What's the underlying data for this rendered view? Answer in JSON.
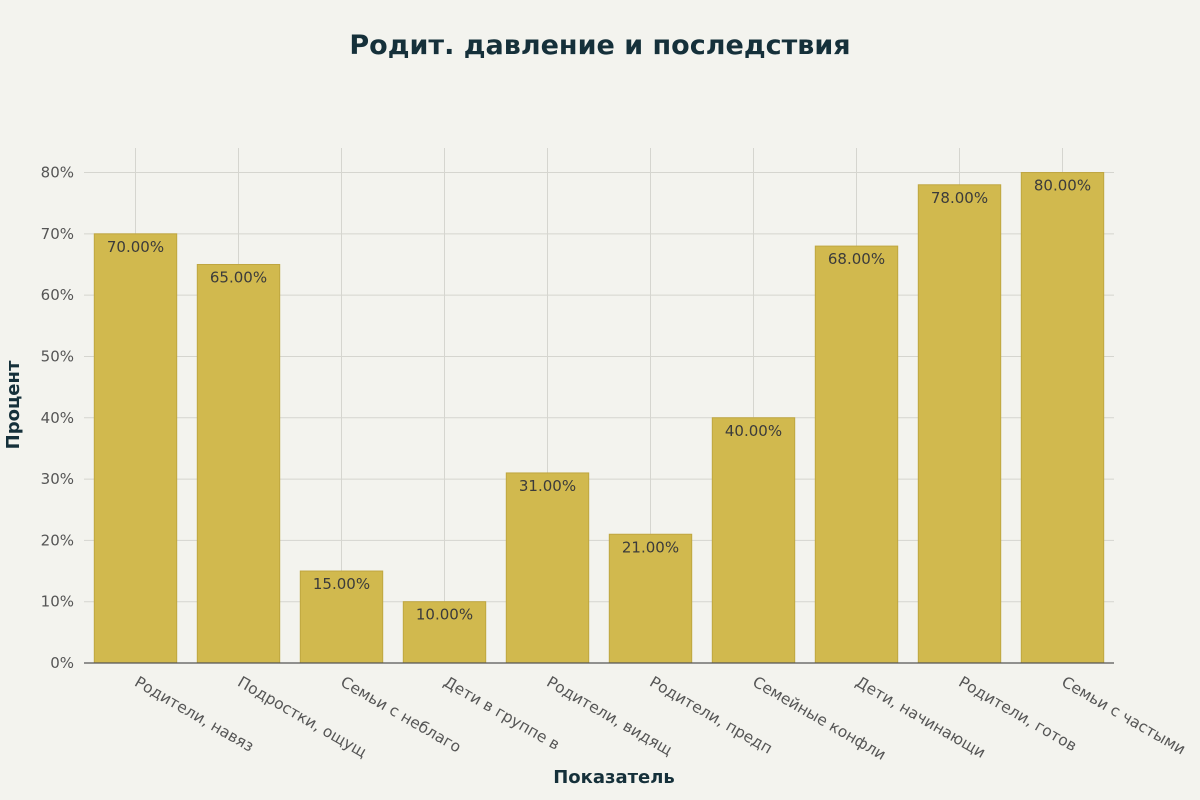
{
  "chart_data": {
    "type": "bar",
    "title": "Родит. давление и последствия",
    "xlabel": "Показатель",
    "ylabel": "Процент",
    "categories": [
      "Родители, навяз",
      "Подростки, ощущ",
      "Семьи с неблаго",
      "Дети в группе в",
      "Родители, видящ",
      "Родители, предп",
      "Семейные конфли",
      "Дети, начинающи",
      "Родители, готов",
      "Семьи с частыми"
    ],
    "values": [
      70,
      65,
      15,
      10,
      31,
      21,
      40,
      68,
      78,
      80
    ],
    "data_labels": [
      "70.00%",
      "65.00%",
      "15.00%",
      "10.00%",
      "31.00%",
      "21.00%",
      "40.00%",
      "68.00%",
      "78.00%",
      "80.00%"
    ],
    "y_ticks": [
      0,
      10,
      20,
      30,
      40,
      50,
      60,
      70,
      80
    ],
    "y_tick_labels": [
      "0%",
      "10%",
      "20%",
      "30%",
      "40%",
      "50%",
      "60%",
      "70%",
      "80%"
    ],
    "ylim": [
      0,
      84
    ],
    "grid": true,
    "colors": {
      "bar": "#d1b94e",
      "bar_edge": "#bfa640",
      "grid": "#d5d5cf",
      "axis": "#555555",
      "background": "#f3f3ee"
    }
  }
}
